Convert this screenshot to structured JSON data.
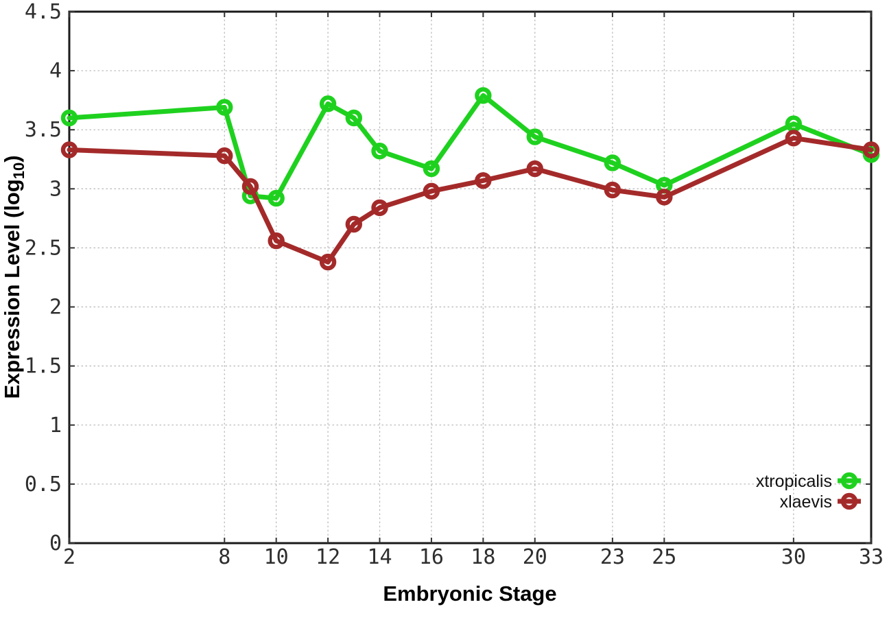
{
  "chart_data": {
    "type": "line",
    "title": "",
    "xlabel": "Embryonic Stage",
    "ylabel": "Expression Level (log10)",
    "ylabel_parts": {
      "pre": "Expression Level (log",
      "sub": "10",
      "post": ")"
    },
    "x": [
      2,
      8,
      9,
      10,
      12,
      13,
      14,
      16,
      18,
      20,
      23,
      25,
      30,
      33
    ],
    "series": [
      {
        "name": "xtropicalis",
        "color": "#1fd11f",
        "marker": "open-circle",
        "values": [
          3.6,
          3.69,
          2.94,
          2.92,
          3.72,
          3.6,
          3.32,
          3.17,
          3.79,
          3.44,
          3.22,
          3.03,
          3.55,
          3.29
        ]
      },
      {
        "name": "xlaevis",
        "color": "#a42a2a",
        "marker": "open-circle",
        "values": [
          3.33,
          3.28,
          3.02,
          2.56,
          2.38,
          2.7,
          2.84,
          2.98,
          3.07,
          3.17,
          2.99,
          2.93,
          3.43,
          3.33
        ]
      }
    ],
    "x_ticks": {
      "values": [
        2,
        8,
        10,
        12,
        14,
        16,
        18,
        20,
        23,
        25,
        30,
        33
      ],
      "labels": [
        "2",
        "8",
        "10",
        "12",
        "14",
        "16",
        "18",
        "20",
        "23",
        "25",
        "30",
        "33"
      ]
    },
    "y_ticks": {
      "values": [
        0,
        0.5,
        1,
        1.5,
        2,
        2.5,
        3,
        3.5,
        4,
        4.5
      ],
      "labels": [
        "0",
        "0.5",
        "1",
        "1.5",
        "2",
        "2.5",
        "3",
        "3.5",
        "4",
        "4.5"
      ]
    },
    "xlim": [
      2,
      33
    ],
    "ylim": [
      0,
      4.5
    ],
    "grid": true,
    "grid_color": "#bbbbbb",
    "axis_color": "#1a1a1a",
    "tick_color": "#333333",
    "background": "#ffffff",
    "legend_position": "bottom-right",
    "legend_entries": [
      "xtropicalis",
      "xlaevis"
    ]
  }
}
